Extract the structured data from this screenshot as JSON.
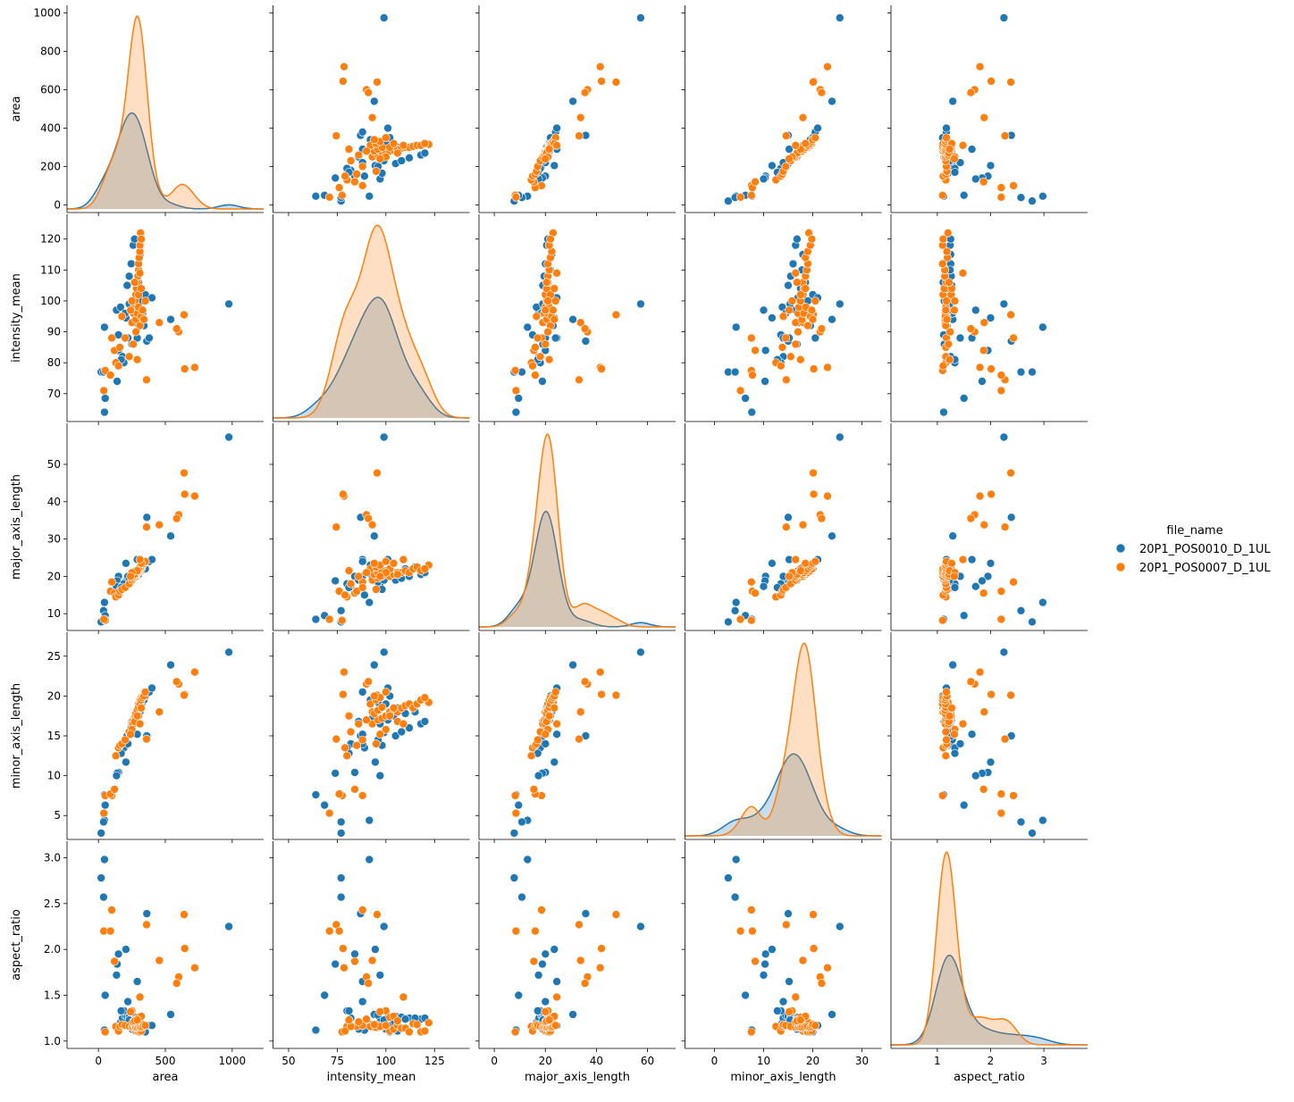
{
  "chart_data": {
    "type": "scatter",
    "subtype": "pairplot",
    "variables": [
      "area",
      "intensity_mean",
      "major_axis_length",
      "minor_axis_length",
      "aspect_ratio"
    ],
    "axis_labels": [
      "area",
      "intensity_mean",
      "major_axis_length",
      "minor_axis_length",
      "aspect_ratio"
    ],
    "ranges": [
      [
        -235,
        1235
      ],
      [
        42,
        143
      ],
      [
        -6,
        71
      ],
      [
        -6,
        34
      ],
      [
        0.13,
        3.82
      ]
    ],
    "yranges": [
      [
        -40,
        1040
      ],
      [
        61,
        128
      ],
      [
        5.5,
        61
      ],
      [
        2,
        28
      ],
      [
        0.92,
        3.18
      ]
    ],
    "xticks": [
      [
        0,
        500,
        1000
      ],
      [
        50,
        75,
        100,
        125
      ],
      [
        0,
        20,
        40,
        60
      ],
      [
        0,
        10,
        20,
        30
      ],
      [
        1,
        2,
        3
      ]
    ],
    "xtick_labels": [
      [
        "0",
        "500",
        "1000"
      ],
      [
        "50",
        "75",
        "100",
        "125"
      ],
      [
        "0",
        "20",
        "40",
        "60"
      ],
      [
        "0",
        "10",
        "20",
        "30"
      ],
      [
        "1",
        "2",
        "3"
      ]
    ],
    "yticks": [
      [
        0,
        200,
        400,
        600,
        800,
        1000
      ],
      [
        70,
        80,
        90,
        100,
        110,
        120
      ],
      [
        10,
        20,
        30,
        40,
        50
      ],
      [
        5,
        10,
        15,
        20,
        25
      ],
      [
        1.0,
        1.5,
        2.0,
        2.5,
        3.0
      ]
    ],
    "ytick_labels": [
      [
        "0",
        "200",
        "400",
        "600",
        "800",
        "1000"
      ],
      [
        "70",
        "80",
        "90",
        "100",
        "110",
        "120"
      ],
      [
        "10",
        "20",
        "30",
        "40",
        "50"
      ],
      [
        "5",
        "10",
        "15",
        "20",
        "25"
      ],
      [
        "1.0",
        "1.5",
        "2.0",
        "2.5",
        "3.0"
      ]
    ],
    "diagonal": "kde",
    "legend": {
      "title": "file_name",
      "placement": "right"
    },
    "series": [
      {
        "name": "20P1_POS0010_D_1UL",
        "color": "#1f77b4",
        "points": [
          [
            975,
            99,
            57.3,
            25.5,
            2.25
          ],
          [
            540,
            94,
            30.8,
            23.9,
            1.29
          ],
          [
            362,
            87,
            35.8,
            15.0,
            2.39
          ],
          [
            20,
            77,
            7.8,
            2.8,
            2.78
          ],
          [
            45,
            91.5,
            13.0,
            4.4,
            2.98
          ],
          [
            38,
            77,
            10.8,
            4.2,
            2.57
          ],
          [
            50,
            68.5,
            9.5,
            6.3,
            1.5
          ],
          [
            45,
            64,
            8.5,
            7.6,
            1.12
          ],
          [
            205,
            94.5,
            23.5,
            11.7,
            2.0
          ],
          [
            150,
            84,
            20.0,
            10.4,
            1.95
          ],
          [
            140,
            74,
            18.8,
            10.3,
            1.84
          ],
          [
            135,
            97,
            17.3,
            10.0,
            1.72
          ],
          [
            290,
            88,
            24.5,
            15.2,
            1.65
          ],
          [
            150,
            89,
            15.0,
            13.5,
            1.12
          ],
          [
            165,
            98,
            16.5,
            13.8,
            1.2
          ],
          [
            180,
            82,
            17.5,
            14.0,
            1.25
          ],
          [
            200,
            96,
            18.5,
            14.5,
            1.28
          ],
          [
            215,
            105,
            19.0,
            15.0,
            1.27
          ],
          [
            230,
            108,
            19.5,
            15.5,
            1.26
          ],
          [
            245,
            112,
            20.0,
            16.0,
            1.25
          ],
          [
            260,
            118,
            20.5,
            16.5,
            1.24
          ],
          [
            270,
            120,
            21.0,
            16.8,
            1.25
          ],
          [
            280,
            101,
            21.5,
            17.0,
            1.26
          ],
          [
            290,
            104,
            21.0,
            17.5,
            1.2
          ],
          [
            300,
            110,
            22.0,
            17.8,
            1.24
          ],
          [
            310,
            115,
            22.5,
            18.0,
            1.25
          ],
          [
            320,
            100,
            21.5,
            19.0,
            1.13
          ],
          [
            330,
            96,
            22.5,
            19.2,
            1.17
          ],
          [
            340,
            92,
            23.0,
            19.5,
            1.18
          ],
          [
            350,
            102,
            22.0,
            20.0,
            1.1
          ],
          [
            380,
            88,
            24.0,
            20.5,
            1.17
          ],
          [
            400,
            101,
            24.5,
            21.0,
            1.17
          ],
          [
            250,
            86,
            19.0,
            16.8,
            1.13
          ],
          [
            270,
            93,
            20.0,
            17.2,
            1.16
          ],
          [
            190,
            80,
            18.0,
            13.5,
            1.33
          ],
          [
            220,
            88,
            20.0,
            14.0,
            1.43
          ],
          [
            170,
            81,
            17.0,
            12.8,
            1.33
          ],
          [
            300,
            106,
            20.5,
            18.5,
            1.11
          ],
          [
            260,
            97,
            20.0,
            16.5,
            1.21
          ],
          [
            230,
            99,
            19.0,
            15.4,
            1.23
          ]
        ]
      },
      {
        "name": "20P1_POS0007_D_1UL",
        "color": "#ff7f0e",
        "points": [
          [
            720,
            78.5,
            41.5,
            23.0,
            1.8
          ],
          [
            645,
            78,
            42.0,
            20.2,
            2.01
          ],
          [
            640,
            95.5,
            47.7,
            20.1,
            2.38
          ],
          [
            600,
            90,
            36.5,
            21.5,
            1.7
          ],
          [
            585,
            91,
            35.5,
            21.8,
            1.63
          ],
          [
            455,
            93,
            33.8,
            18.0,
            1.88
          ],
          [
            360,
            74.5,
            33.2,
            14.6,
            2.27
          ],
          [
            50,
            77.5,
            8.2,
            7.5,
            1.1
          ],
          [
            40,
            71,
            8.5,
            5.3,
            2.2
          ],
          [
            100,
            88,
            18.5,
            7.5,
            2.43
          ],
          [
            90,
            76,
            16.0,
            7.7,
            2.2
          ],
          [
            120,
            84,
            15.5,
            8.3,
            1.87
          ],
          [
            130,
            80,
            14.5,
            12.5,
            1.16
          ],
          [
            150,
            79,
            15.0,
            13.5,
            1.11
          ],
          [
            160,
            85,
            16.0,
            13.8,
            1.16
          ],
          [
            175,
            95,
            16.5,
            14.0,
            1.18
          ],
          [
            200,
            88,
            17.0,
            14.5,
            1.17
          ],
          [
            230,
            82,
            18.0,
            15.5,
            1.16
          ],
          [
            250,
            93,
            19.0,
            16.5,
            1.15
          ],
          [
            260,
            96,
            19.5,
            17.0,
            1.15
          ],
          [
            270,
            98,
            20.0,
            17.2,
            1.16
          ],
          [
            275,
            100,
            20.5,
            17.5,
            1.17
          ],
          [
            280,
            102,
            20.0,
            18.0,
            1.11
          ],
          [
            285,
            104,
            20.5,
            18.2,
            1.13
          ],
          [
            290,
            106,
            21.0,
            18.0,
            1.17
          ],
          [
            295,
            108,
            21.0,
            18.5,
            1.14
          ],
          [
            300,
            110,
            21.5,
            18.8,
            1.14
          ],
          [
            300,
            112,
            21.0,
            19.0,
            1.1
          ],
          [
            305,
            114,
            22.0,
            18.5,
            1.19
          ],
          [
            310,
            116,
            22.5,
            19.0,
            1.18
          ],
          [
            310,
            118,
            21.5,
            19.5,
            1.1
          ],
          [
            315,
            122,
            23.0,
            19.2,
            1.2
          ],
          [
            320,
            120,
            22.0,
            19.8,
            1.11
          ],
          [
            280,
            94,
            20.5,
            17.8,
            1.15
          ],
          [
            290,
            96,
            21.0,
            18.2,
            1.15
          ],
          [
            300,
            98,
            21.5,
            18.6,
            1.16
          ],
          [
            310,
            92,
            22.0,
            19.0,
            1.16
          ],
          [
            320,
            95,
            22.5,
            19.5,
            1.15
          ],
          [
            330,
            97,
            23.0,
            19.8,
            1.16
          ],
          [
            340,
            94,
            23.5,
            20.0,
            1.18
          ],
          [
            350,
            100,
            24.0,
            20.5,
            1.17
          ],
          [
            280,
            90,
            21.0,
            17.0,
            1.24
          ],
          [
            260,
            86,
            20.0,
            16.5,
            1.21
          ],
          [
            300,
            102,
            22.0,
            17.5,
            1.26
          ],
          [
            320,
            104,
            23.5,
            18.5,
            1.27
          ],
          [
            270,
            106,
            20.5,
            16.8,
            1.22
          ],
          [
            290,
            81,
            21.5,
            17.5,
            1.23
          ],
          [
            250,
            100,
            21.0,
            15.8,
            1.33
          ],
          [
            310,
            109,
            24.5,
            16.5,
            1.48
          ],
          [
            240,
            97,
            20.0,
            15.2,
            1.32
          ]
        ]
      }
    ]
  }
}
